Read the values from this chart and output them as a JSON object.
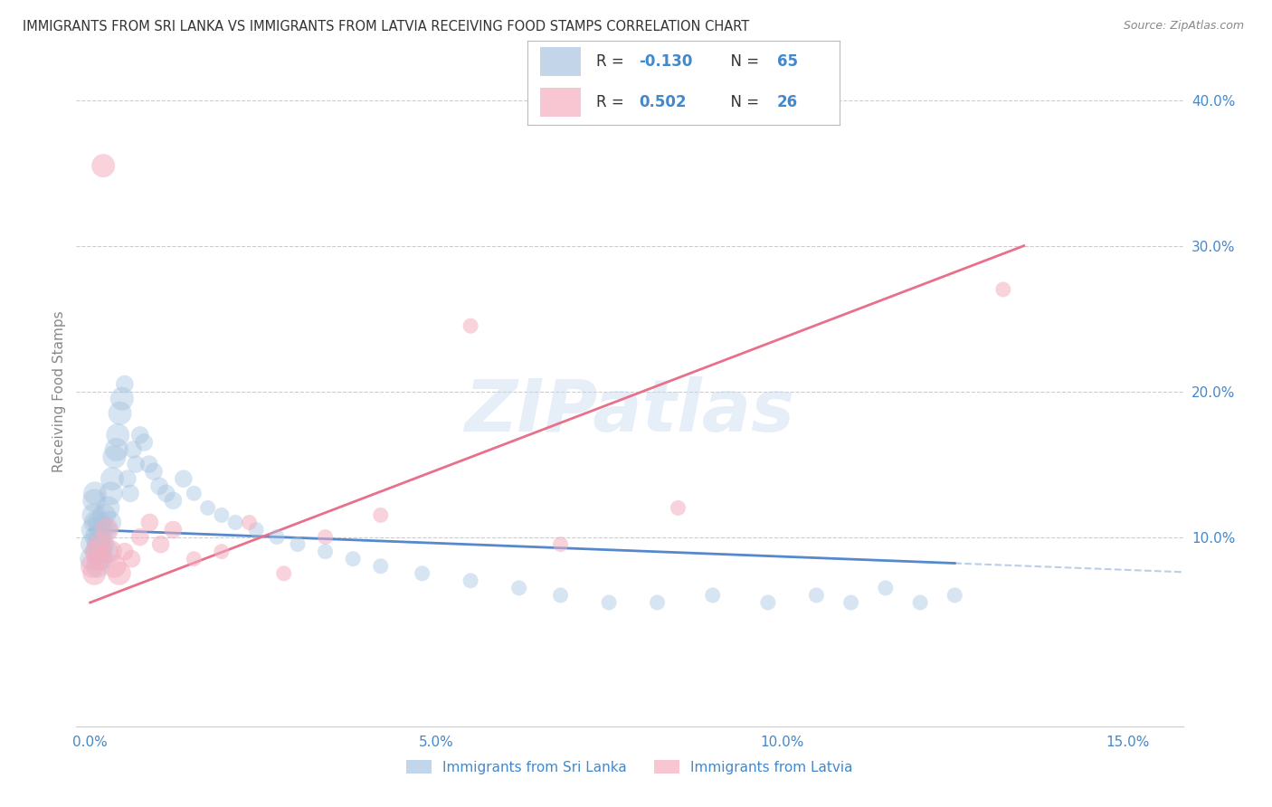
{
  "title": "IMMIGRANTS FROM SRI LANKA VS IMMIGRANTS FROM LATVIA RECEIVING FOOD STAMPS CORRELATION CHART",
  "source": "Source: ZipAtlas.com",
  "ylabel": "Receiving Food Stamps",
  "x_tick_labels": [
    "0.0%",
    "5.0%",
    "10.0%",
    "15.0%"
  ],
  "x_tick_vals": [
    0.0,
    5.0,
    10.0,
    15.0
  ],
  "y_tick_labels_right": [
    "10.0%",
    "20.0%",
    "30.0%",
    "40.0%"
  ],
  "y_tick_vals_right": [
    10.0,
    20.0,
    30.0,
    40.0
  ],
  "xlim": [
    -0.2,
    15.8
  ],
  "ylim": [
    -3.0,
    43.0
  ],
  "watermark": "ZIPatlas",
  "sri_lanka_color": "#a8c4e0",
  "latvia_color": "#f4afc0",
  "sri_lanka_line_color": "#5588cc",
  "latvia_line_color": "#e8708a",
  "sri_lanka_R": -0.13,
  "sri_lanka_N": 65,
  "latvia_R": 0.502,
  "latvia_N": 26,
  "legend_label_bottom1": "Immigrants from Sri Lanka",
  "legend_label_bottom2": "Immigrants from Latvia",
  "grid_color": "#cccccc",
  "background_color": "#ffffff",
  "tick_label_color": "#4488cc",
  "ylabel_color": "#888888",
  "sl_x": [
    0.02,
    0.03,
    0.04,
    0.05,
    0.06,
    0.07,
    0.08,
    0.09,
    0.1,
    0.11,
    0.12,
    0.13,
    0.14,
    0.15,
    0.16,
    0.17,
    0.18,
    0.2,
    0.22,
    0.24,
    0.26,
    0.28,
    0.3,
    0.32,
    0.35,
    0.38,
    0.4,
    0.43,
    0.46,
    0.5,
    0.54,
    0.58,
    0.62,
    0.66,
    0.72,
    0.78,
    0.85,
    0.92,
    1.0,
    1.1,
    1.2,
    1.35,
    1.5,
    1.7,
    1.9,
    2.1,
    2.4,
    2.7,
    3.0,
    3.4,
    3.8,
    4.2,
    4.8,
    5.5,
    6.2,
    6.8,
    7.5,
    8.2,
    9.0,
    9.8,
    10.5,
    11.0,
    11.5,
    12.0,
    12.5
  ],
  "sl_y": [
    8.5,
    9.5,
    10.5,
    11.5,
    12.5,
    13.0,
    11.0,
    10.0,
    9.0,
    8.0,
    9.5,
    11.0,
    10.0,
    9.0,
    8.5,
    10.5,
    9.5,
    11.5,
    10.5,
    9.0,
    12.0,
    11.0,
    13.0,
    14.0,
    15.5,
    16.0,
    17.0,
    18.5,
    19.5,
    20.5,
    14.0,
    13.0,
    16.0,
    15.0,
    17.0,
    16.5,
    15.0,
    14.5,
    13.5,
    13.0,
    12.5,
    14.0,
    13.0,
    12.0,
    11.5,
    11.0,
    10.5,
    10.0,
    9.5,
    9.0,
    8.5,
    8.0,
    7.5,
    7.0,
    6.5,
    6.0,
    5.5,
    5.5,
    6.0,
    5.5,
    6.0,
    5.5,
    6.5,
    5.5,
    6.0
  ],
  "lv_x": [
    0.03,
    0.06,
    0.09,
    0.12,
    0.15,
    0.19,
    0.24,
    0.29,
    0.35,
    0.42,
    0.5,
    0.6,
    0.72,
    0.86,
    1.02,
    1.2,
    1.5,
    1.9,
    2.3,
    2.8,
    3.4,
    4.2,
    5.5,
    6.8,
    8.5,
    13.2
  ],
  "lv_y": [
    8.0,
    7.5,
    9.0,
    8.5,
    9.5,
    35.5,
    10.5,
    9.0,
    8.0,
    7.5,
    9.0,
    8.5,
    10.0,
    11.0,
    9.5,
    10.5,
    8.5,
    9.0,
    11.0,
    7.5,
    10.0,
    11.5,
    24.5,
    9.5,
    12.0,
    27.0
  ]
}
